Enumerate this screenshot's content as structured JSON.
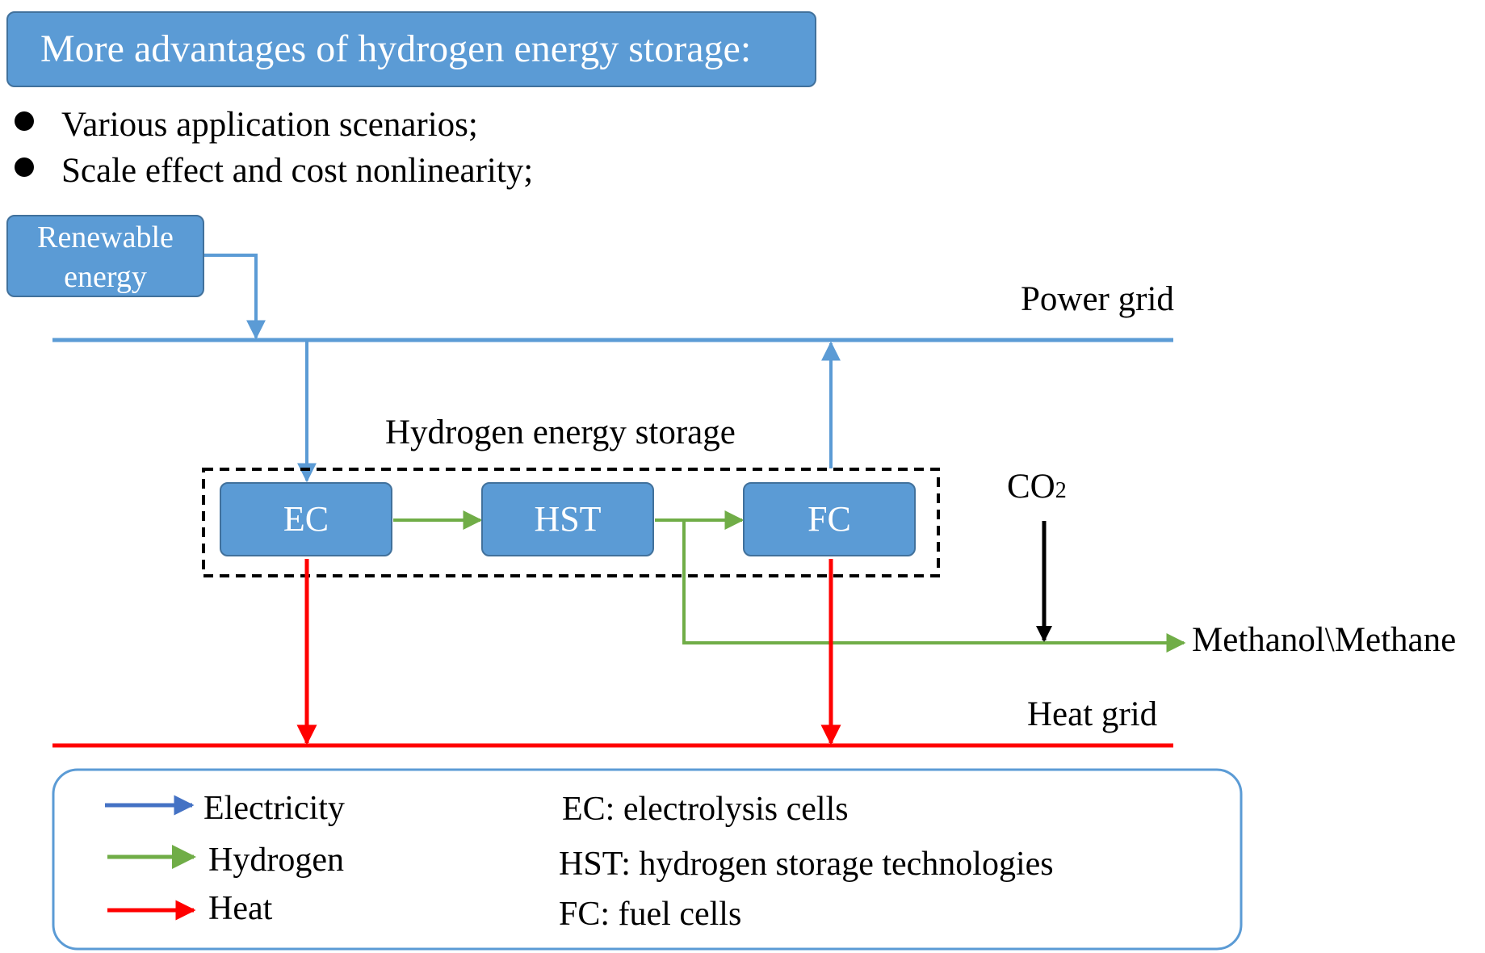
{
  "header": {
    "title": "More advantages of hydrogen energy storage:",
    "bullets": [
      "Various application scenarios;",
      "Scale effect and cost nonlinearity;"
    ]
  },
  "diagram": {
    "source_label_line1": "Renewable",
    "source_label_line2": "energy",
    "power_grid_label": "Power grid",
    "heat_grid_label": "Heat grid",
    "storage_label": "Hydrogen energy storage",
    "nodes": {
      "ec": "EC",
      "hst": "HST",
      "fc": "FC"
    },
    "co2_main": "CO",
    "co2_sub": "2",
    "output_label": "Methanol\\Methane"
  },
  "legend": {
    "flows": [
      {
        "label": "Electricity",
        "color": "#4472c4"
      },
      {
        "label": "Hydrogen",
        "color": "#70ad47"
      },
      {
        "label": "Heat",
        "color": "#ff0000"
      }
    ],
    "abbreviations": [
      "EC: electrolysis cells",
      "HST: hydrogen storage technologies",
      "FC: fuel cells"
    ]
  },
  "colors": {
    "electricity_line": "#5b9bd5",
    "hydrogen_line": "#70ad47",
    "heat_line": "#ff0000",
    "box_fill": "#5b9bd5",
    "box_border": "#41719c"
  }
}
